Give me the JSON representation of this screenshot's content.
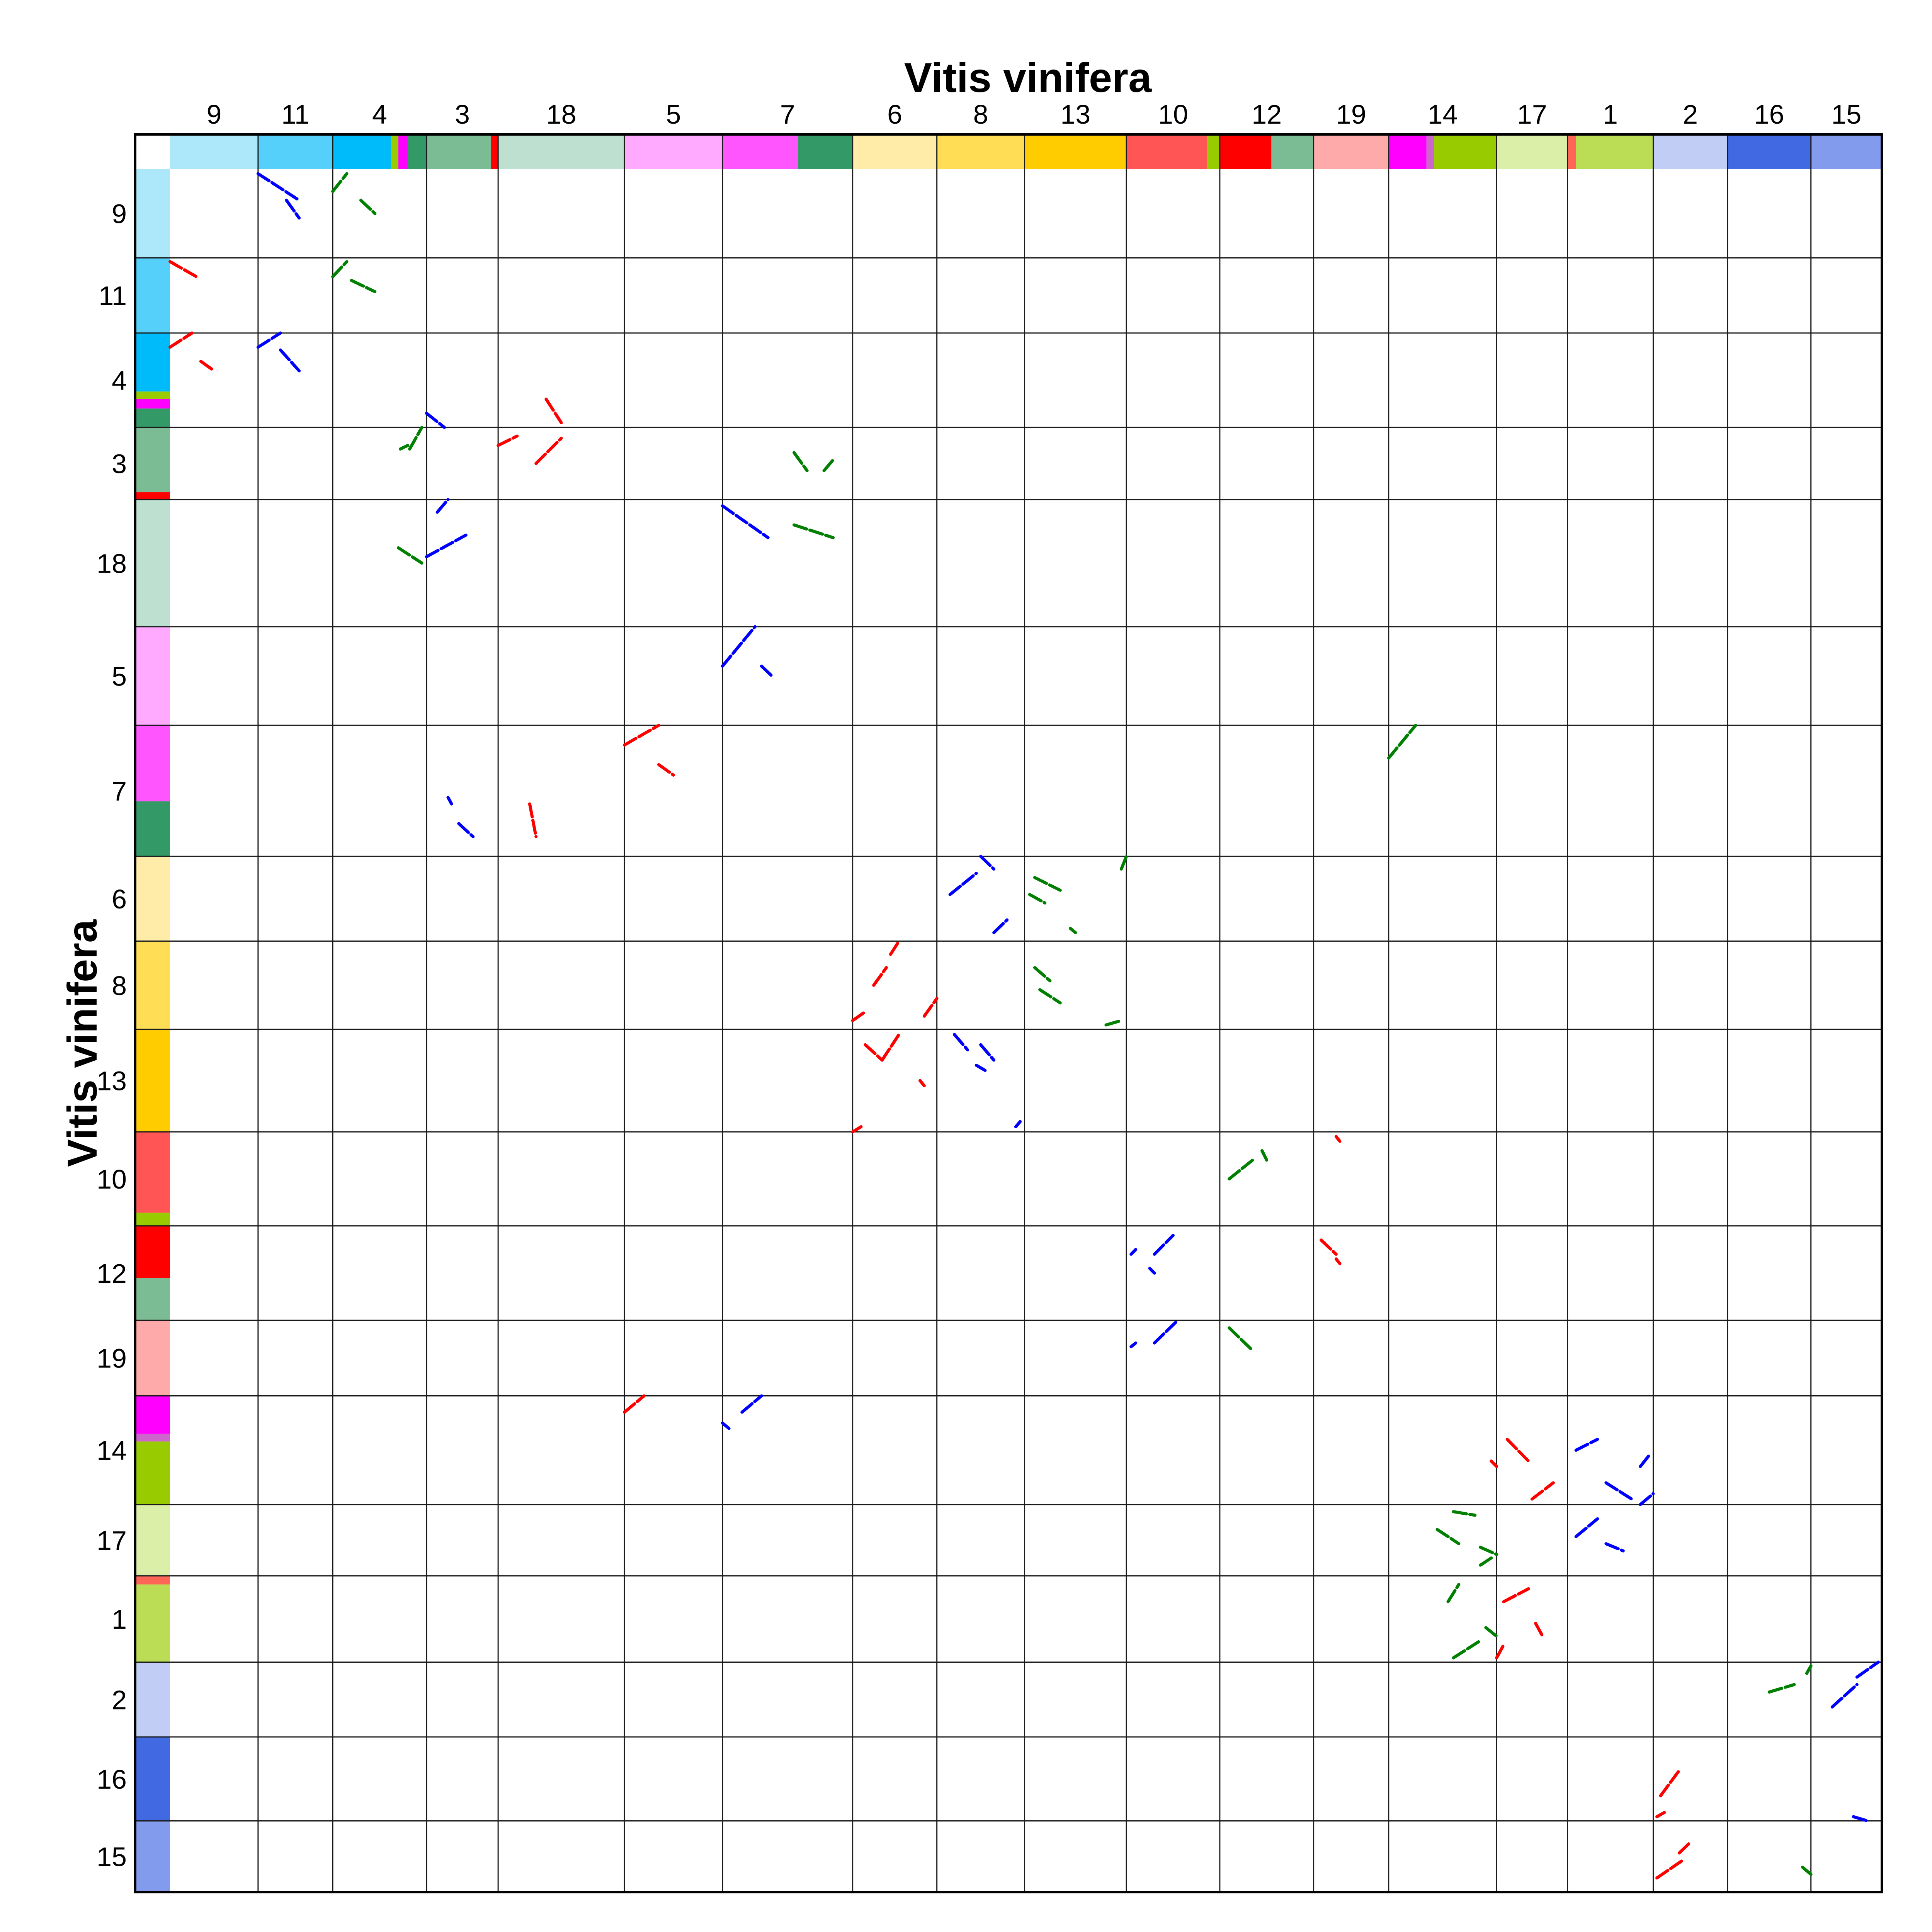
{
  "chart_data": {
    "type": "scatter",
    "title_top": "Vitis vinifera",
    "title_left": "Vitis vinifera",
    "x_chromosomes": [
      "9",
      "11",
      "4",
      "3",
      "18",
      "5",
      "7",
      "6",
      "8",
      "13",
      "10",
      "12",
      "19",
      "14",
      "17",
      "1",
      "2",
      "16",
      "15"
    ],
    "y_chromosomes": [
      "9",
      "11",
      "4",
      "3",
      "18",
      "5",
      "7",
      "6",
      "8",
      "13",
      "10",
      "12",
      "19",
      "14",
      "17",
      "1",
      "2",
      "16",
      "15"
    ],
    "chromosome_lengths": [
      23.0,
      19.5,
      24.5,
      18.7,
      33.0,
      25.6,
      34.0,
      22.0,
      22.9,
      26.6,
      24.4,
      24.5,
      19.6,
      28.2,
      18.5,
      22.4,
      19.4,
      21.8,
      18.5
    ],
    "color_segments": [
      [
        {
          "to": 1.0,
          "color": "#ade8fa"
        }
      ],
      [
        {
          "to": 1.0,
          "color": "#55d0fb"
        }
      ],
      [
        {
          "to": 0.62,
          "color": "#00bbf9"
        },
        {
          "to": 0.7,
          "color": "#99cc00"
        },
        {
          "to": 0.8,
          "color": "#ff00ff"
        },
        {
          "to": 1.0,
          "color": "#339966"
        }
      ],
      [
        {
          "to": 0.9,
          "color": "#7cbc95"
        },
        {
          "to": 1.0,
          "color": "#ff0000"
        }
      ],
      [
        {
          "to": 1.0,
          "color": "#bde0d0"
        }
      ],
      [
        {
          "to": 1.0,
          "color": "#ffaaff"
        }
      ],
      [
        {
          "to": 0.58,
          "color": "#ff55ff"
        },
        {
          "to": 1.0,
          "color": "#339966"
        }
      ],
      [
        {
          "to": 1.0,
          "color": "#ffeca8"
        }
      ],
      [
        {
          "to": 1.0,
          "color": "#ffdd55"
        }
      ],
      [
        {
          "to": 1.0,
          "color": "#ffcc00"
        }
      ],
      [
        {
          "to": 0.86,
          "color": "#ff5555"
        },
        {
          "to": 1.0,
          "color": "#99cc00"
        }
      ],
      [
        {
          "to": 0.55,
          "color": "#ff0000"
        },
        {
          "to": 1.0,
          "color": "#7cbc95"
        }
      ],
      [
        {
          "to": 1.0,
          "color": "#ffaaaa"
        }
      ],
      [
        {
          "to": 0.35,
          "color": "#ff00ff"
        },
        {
          "to": 0.42,
          "color": "#cc66cc"
        },
        {
          "to": 1.0,
          "color": "#99cc00"
        }
      ],
      [
        {
          "to": 1.0,
          "color": "#dbefa8"
        }
      ],
      [
        {
          "to": 0.1,
          "color": "#ff6655"
        },
        {
          "to": 1.0,
          "color": "#bbdd55"
        }
      ],
      [
        {
          "to": 1.0,
          "color": "#c1cdf5"
        }
      ],
      [
        {
          "to": 1.0,
          "color": "#4169e1"
        }
      ],
      [
        {
          "to": 1.0,
          "color": "#829bed"
        }
      ]
    ],
    "dot_colors": {
      "r": "#ff0000",
      "b": "#0000ff",
      "g": "#008000"
    },
    "segments": [
      {
        "xc": "11",
        "yc": "9",
        "x1": 0.0,
        "y1": 0.05,
        "x2": 0.55,
        "y2": 0.35,
        "c": "b"
      },
      {
        "xc": "11",
        "yc": "9",
        "x1": 0.38,
        "y1": 0.35,
        "x2": 0.55,
        "y2": 0.55,
        "c": "b"
      },
      {
        "xc": "4",
        "yc": "9",
        "x1": 0.0,
        "y1": 0.25,
        "x2": 0.15,
        "y2": 0.05,
        "c": "g"
      },
      {
        "xc": "4",
        "yc": "9",
        "x1": 0.3,
        "y1": 0.35,
        "x2": 0.45,
        "y2": 0.5,
        "c": "g"
      },
      {
        "xc": "9",
        "yc": "11",
        "x1": 0.0,
        "y1": 0.05,
        "x2": 0.3,
        "y2": 0.25,
        "c": "r"
      },
      {
        "xc": "4",
        "yc": "11",
        "x1": 0.0,
        "y1": 0.25,
        "x2": 0.15,
        "y2": 0.05,
        "c": "g"
      },
      {
        "xc": "4",
        "yc": "11",
        "x1": 0.2,
        "y1": 0.3,
        "x2": 0.45,
        "y2": 0.45,
        "c": "g"
      },
      {
        "xc": "9",
        "yc": "4",
        "x1": 0.0,
        "y1": 0.15,
        "x2": 0.25,
        "y2": 0.0,
        "c": "r"
      },
      {
        "xc": "9",
        "yc": "4",
        "x1": 0.35,
        "y1": 0.3,
        "x2": 0.5,
        "y2": 0.4,
        "c": "r"
      },
      {
        "xc": "11",
        "yc": "4",
        "x1": 0.0,
        "y1": 0.15,
        "x2": 0.3,
        "y2": 0.0,
        "c": "b"
      },
      {
        "xc": "11",
        "yc": "4",
        "x1": 0.3,
        "y1": 0.18,
        "x2": 0.55,
        "y2": 0.4,
        "c": "b"
      },
      {
        "xc": "3",
        "yc": "4",
        "x1": 0.0,
        "y1": 0.85,
        "x2": 0.25,
        "y2": 1.0,
        "c": "b"
      },
      {
        "xc": "18",
        "yc": "4",
        "x1": 0.38,
        "y1": 0.7,
        "x2": 0.5,
        "y2": 0.95,
        "c": "r"
      },
      {
        "xc": "4",
        "yc": "3",
        "x1": 0.82,
        "y1": 0.3,
        "x2": 0.95,
        "y2": 0.0,
        "c": "g"
      },
      {
        "xc": "4",
        "yc": "3",
        "x1": 0.72,
        "y1": 0.3,
        "x2": 0.8,
        "y2": 0.25,
        "c": "g"
      },
      {
        "xc": "18",
        "yc": "3",
        "x1": 0.0,
        "y1": 0.25,
        "x2": 0.15,
        "y2": 0.12,
        "c": "r"
      },
      {
        "xc": "18",
        "yc": "3",
        "x1": 0.3,
        "y1": 0.5,
        "x2": 0.5,
        "y2": 0.15,
        "c": "r"
      },
      {
        "xc": "7",
        "yc": "3",
        "x1": 0.55,
        "y1": 0.35,
        "x2": 0.65,
        "y2": 0.6,
        "c": "g"
      },
      {
        "xc": "7",
        "yc": "3",
        "x1": 0.78,
        "y1": 0.6,
        "x2": 0.85,
        "y2": 0.45,
        "c": "g"
      },
      {
        "xc": "4",
        "yc": "18",
        "x1": 0.7,
        "y1": 0.38,
        "x2": 0.95,
        "y2": 0.5,
        "c": "g"
      },
      {
        "xc": "3",
        "yc": "18",
        "x1": 0.0,
        "y1": 0.45,
        "x2": 0.55,
        "y2": 0.28,
        "c": "b"
      },
      {
        "xc": "3",
        "yc": "18",
        "x1": 0.15,
        "y1": 0.1,
        "x2": 0.3,
        "y2": 0.0,
        "c": "b"
      },
      {
        "xc": "7",
        "yc": "18",
        "x1": 0.55,
        "y1": 0.2,
        "x2": 0.85,
        "y2": 0.3,
        "c": "g"
      },
      {
        "xc": "7",
        "yc": "18",
        "x1": 0.0,
        "y1": 0.05,
        "x2": 0.35,
        "y2": 0.3,
        "c": "b"
      },
      {
        "xc": "7",
        "yc": "5",
        "x1": 0.0,
        "y1": 0.4,
        "x2": 0.25,
        "y2": 0.0,
        "c": "b"
      },
      {
        "xc": "7",
        "yc": "5",
        "x1": 0.3,
        "y1": 0.4,
        "x2": 0.38,
        "y2": 0.5,
        "c": "b"
      },
      {
        "xc": "5",
        "yc": "7",
        "x1": 0.0,
        "y1": 0.15,
        "x2": 0.35,
        "y2": 0.0,
        "c": "r"
      },
      {
        "xc": "5",
        "yc": "7",
        "x1": 0.35,
        "y1": 0.3,
        "x2": 0.5,
        "y2": 0.38,
        "c": "r"
      },
      {
        "xc": "3",
        "yc": "7",
        "x1": 0.3,
        "y1": 0.55,
        "x2": 0.35,
        "y2": 0.6,
        "c": "b"
      },
      {
        "xc": "3",
        "yc": "7",
        "x1": 0.45,
        "y1": 0.75,
        "x2": 0.65,
        "y2": 0.85,
        "c": "b"
      },
      {
        "xc": "18",
        "yc": "7",
        "x1": 0.25,
        "y1": 0.6,
        "x2": 0.3,
        "y2": 0.85,
        "c": "r"
      },
      {
        "xc": "14",
        "yc": "7",
        "x1": 0.0,
        "y1": 0.25,
        "x2": 0.25,
        "y2": 0.0,
        "c": "g"
      },
      {
        "xc": "8",
        "yc": "6",
        "x1": 0.15,
        "y1": 0.45,
        "x2": 0.45,
        "y2": 0.2,
        "c": "b"
      },
      {
        "xc": "8",
        "yc": "6",
        "x1": 0.5,
        "y1": 0.0,
        "x2": 0.65,
        "y2": 0.15,
        "c": "b"
      },
      {
        "xc": "8",
        "yc": "6",
        "x1": 0.65,
        "y1": 0.9,
        "x2": 0.8,
        "y2": 0.75,
        "c": "b"
      },
      {
        "xc": "13",
        "yc": "6",
        "x1": 0.1,
        "y1": 0.25,
        "x2": 0.35,
        "y2": 0.4,
        "c": "g"
      },
      {
        "xc": "13",
        "yc": "6",
        "x1": 0.05,
        "y1": 0.45,
        "x2": 0.2,
        "y2": 0.55,
        "c": "g"
      },
      {
        "xc": "13",
        "yc": "6",
        "x1": 0.45,
        "y1": 0.85,
        "x2": 0.5,
        "y2": 0.9,
        "c": "g"
      },
      {
        "xc": "13",
        "yc": "6",
        "x1": 0.95,
        "y1": 0.15,
        "x2": 1.0,
        "y2": 0.0,
        "c": "g"
      },
      {
        "xc": "6",
        "yc": "8",
        "x1": 0.0,
        "y1": 0.9,
        "x2": 0.15,
        "y2": 0.8,
        "c": "r"
      },
      {
        "xc": "6",
        "yc": "8",
        "x1": 0.25,
        "y1": 0.5,
        "x2": 0.4,
        "y2": 0.3,
        "c": "r"
      },
      {
        "xc": "6",
        "yc": "8",
        "x1": 0.45,
        "y1": 0.15,
        "x2": 0.55,
        "y2": 0.0,
        "c": "r"
      },
      {
        "xc": "6",
        "yc": "8",
        "x1": 0.85,
        "y1": 0.85,
        "x2": 1.0,
        "y2": 0.65,
        "c": "r"
      },
      {
        "xc": "13",
        "yc": "8",
        "x1": 0.1,
        "y1": 0.3,
        "x2": 0.25,
        "y2": 0.45,
        "c": "g"
      },
      {
        "xc": "13",
        "yc": "8",
        "x1": 0.15,
        "y1": 0.55,
        "x2": 0.35,
        "y2": 0.7,
        "c": "g"
      },
      {
        "xc": "13",
        "yc": "8",
        "x1": 0.8,
        "y1": 0.95,
        "x2": 0.95,
        "y2": 0.9,
        "c": "g"
      },
      {
        "xc": "6",
        "yc": "13",
        "x1": 0.15,
        "y1": 0.15,
        "x2": 0.35,
        "y2": 0.3,
        "c": "r"
      },
      {
        "xc": "6",
        "yc": "13",
        "x1": 0.35,
        "y1": 0.3,
        "x2": 0.55,
        "y2": 0.05,
        "c": "r"
      },
      {
        "xc": "6",
        "yc": "13",
        "x1": 0.8,
        "y1": 0.5,
        "x2": 0.85,
        "y2": 0.55,
        "c": "r"
      },
      {
        "xc": "8",
        "yc": "13",
        "x1": 0.2,
        "y1": 0.05,
        "x2": 0.35,
        "y2": 0.2,
        "c": "b"
      },
      {
        "xc": "8",
        "yc": "13",
        "x1": 0.5,
        "y1": 0.15,
        "x2": 0.65,
        "y2": 0.3,
        "c": "b"
      },
      {
        "xc": "8",
        "yc": "13",
        "x1": 0.45,
        "y1": 0.35,
        "x2": 0.55,
        "y2": 0.4,
        "c": "b"
      },
      {
        "xc": "6",
        "yc": "13",
        "x1": 0.0,
        "y1": 1.0,
        "x2": 0.1,
        "y2": 0.95,
        "c": "r"
      },
      {
        "xc": "8",
        "yc": "13",
        "x1": 0.9,
        "y1": 0.95,
        "x2": 0.95,
        "y2": 0.9,
        "c": "b"
      },
      {
        "xc": "12",
        "yc": "10",
        "x1": 0.1,
        "y1": 0.5,
        "x2": 0.35,
        "y2": 0.3,
        "c": "g"
      },
      {
        "xc": "12",
        "yc": "10",
        "x1": 0.45,
        "y1": 0.2,
        "x2": 0.5,
        "y2": 0.3,
        "c": "g"
      },
      {
        "xc": "19",
        "yc": "10",
        "x1": 0.3,
        "y1": 0.05,
        "x2": 0.35,
        "y2": 0.1,
        "c": "r"
      },
      {
        "xc": "10",
        "yc": "12",
        "x1": 0.05,
        "y1": 0.3,
        "x2": 0.1,
        "y2": 0.25,
        "c": "b"
      },
      {
        "xc": "10",
        "yc": "12",
        "x1": 0.3,
        "y1": 0.3,
        "x2": 0.5,
        "y2": 0.1,
        "c": "b"
      },
      {
        "xc": "10",
        "yc": "12",
        "x1": 0.25,
        "y1": 0.45,
        "x2": 0.3,
        "y2": 0.5,
        "c": "b"
      },
      {
        "xc": "19",
        "yc": "12",
        "x1": 0.1,
        "y1": 0.15,
        "x2": 0.3,
        "y2": 0.3,
        "c": "r"
      },
      {
        "xc": "19",
        "yc": "12",
        "x1": 0.3,
        "y1": 0.35,
        "x2": 0.35,
        "y2": 0.4,
        "c": "r"
      },
      {
        "xc": "10",
        "yc": "19",
        "x1": 0.05,
        "y1": 0.35,
        "x2": 0.1,
        "y2": 0.3,
        "c": "b"
      },
      {
        "xc": "10",
        "yc": "19",
        "x1": 0.3,
        "y1": 0.3,
        "x2": 0.55,
        "y2": 0.0,
        "c": "b"
      },
      {
        "xc": "12",
        "yc": "19",
        "x1": 0.1,
        "y1": 0.1,
        "x2": 0.35,
        "y2": 0.4,
        "c": "g"
      },
      {
        "xc": "5",
        "yc": "14",
        "x1": 0.0,
        "y1": 0.15,
        "x2": 0.2,
        "y2": 0.0,
        "c": "r"
      },
      {
        "xc": "7",
        "yc": "14",
        "x1": 0.0,
        "y1": 0.25,
        "x2": 0.05,
        "y2": 0.3,
        "c": "b"
      },
      {
        "xc": "7",
        "yc": "14",
        "x1": 0.15,
        "y1": 0.15,
        "x2": 0.3,
        "y2": 0.0,
        "c": "b"
      },
      {
        "xc": "17",
        "yc": "14",
        "x1": 0.15,
        "y1": 0.4,
        "x2": 0.45,
        "y2": 0.6,
        "c": "r"
      },
      {
        "xc": "14",
        "yc": "14",
        "x1": 0.95,
        "y1": 0.6,
        "x2": 1.0,
        "y2": 0.65,
        "c": "r"
      },
      {
        "xc": "17",
        "yc": "14",
        "x1": 0.5,
        "y1": 0.95,
        "x2": 0.8,
        "y2": 0.8,
        "c": "r"
      },
      {
        "xc": "1",
        "yc": "14",
        "x1": 0.1,
        "y1": 0.5,
        "x2": 0.35,
        "y2": 0.4,
        "c": "b"
      },
      {
        "xc": "1",
        "yc": "14",
        "x1": 0.45,
        "y1": 0.8,
        "x2": 0.75,
        "y2": 0.95,
        "c": "b"
      },
      {
        "xc": "1",
        "yc": "14",
        "x1": 0.85,
        "y1": 0.65,
        "x2": 0.95,
        "y2": 0.55,
        "c": "b"
      },
      {
        "xc": "1",
        "yc": "14",
        "x1": 0.85,
        "y1": 1.0,
        "x2": 1.0,
        "y2": 0.9,
        "c": "b"
      },
      {
        "xc": "14",
        "yc": "17",
        "x1": 0.6,
        "y1": 0.1,
        "x2": 0.8,
        "y2": 0.15,
        "c": "g"
      },
      {
        "xc": "14",
        "yc": "17",
        "x1": 0.45,
        "y1": 0.35,
        "x2": 0.65,
        "y2": 0.55,
        "c": "g"
      },
      {
        "xc": "14",
        "yc": "17",
        "x1": 0.85,
        "y1": 0.6,
        "x2": 1.0,
        "y2": 0.7,
        "c": "g"
      },
      {
        "xc": "14",
        "yc": "17",
        "x1": 0.85,
        "y1": 0.85,
        "x2": 0.95,
        "y2": 0.75,
        "c": "g"
      },
      {
        "xc": "1",
        "yc": "17",
        "x1": 0.1,
        "y1": 0.45,
        "x2": 0.35,
        "y2": 0.2,
        "c": "b"
      },
      {
        "xc": "1",
        "yc": "17",
        "x1": 0.45,
        "y1": 0.55,
        "x2": 0.65,
        "y2": 0.65,
        "c": "b"
      },
      {
        "xc": "14",
        "yc": "1",
        "x1": 0.55,
        "y1": 0.3,
        "x2": 0.65,
        "y2": 0.1,
        "c": "g"
      },
      {
        "xc": "14",
        "yc": "1",
        "x1": 0.6,
        "y1": 0.95,
        "x2": 0.85,
        "y2": 0.75,
        "c": "g"
      },
      {
        "xc": "14",
        "yc": "1",
        "x1": 0.9,
        "y1": 0.6,
        "x2": 1.0,
        "y2": 0.7,
        "c": "g"
      },
      {
        "xc": "17",
        "yc": "1",
        "x1": 0.1,
        "y1": 0.3,
        "x2": 0.45,
        "y2": 0.15,
        "c": "r"
      },
      {
        "xc": "17",
        "yc": "1",
        "x1": 0.55,
        "y1": 0.55,
        "x2": 0.65,
        "y2": 0.7,
        "c": "r"
      },
      {
        "xc": "17",
        "yc": "1",
        "x1": 0.0,
        "y1": 0.95,
        "x2": 0.1,
        "y2": 0.8,
        "c": "r"
      },
      {
        "xc": "16",
        "yc": "2",
        "x1": 0.5,
        "y1": 0.4,
        "x2": 0.8,
        "y2": 0.3,
        "c": "g"
      },
      {
        "xc": "16",
        "yc": "2",
        "x1": 0.95,
        "y1": 0.15,
        "x2": 1.0,
        "y2": 0.05,
        "c": "g"
      },
      {
        "xc": "15",
        "yc": "2",
        "x1": 0.3,
        "y1": 0.6,
        "x2": 0.65,
        "y2": 0.3,
        "c": "b"
      },
      {
        "xc": "15",
        "yc": "2",
        "x1": 0.65,
        "y1": 0.2,
        "x2": 0.95,
        "y2": 0.0,
        "c": "b"
      },
      {
        "xc": "2",
        "yc": "16",
        "x1": 0.1,
        "y1": 0.7,
        "x2": 0.35,
        "y2": 0.4,
        "c": "r"
      },
      {
        "xc": "2",
        "yc": "16",
        "x1": 0.05,
        "y1": 0.95,
        "x2": 0.15,
        "y2": 0.9,
        "c": "r"
      },
      {
        "xc": "15",
        "yc": "16",
        "x1": 0.6,
        "y1": 0.95,
        "x2": 0.8,
        "y2": 1.0,
        "c": "b"
      },
      {
        "xc": "2",
        "yc": "15",
        "x1": 0.05,
        "y1": 0.8,
        "x2": 0.4,
        "y2": 0.55,
        "c": "r"
      },
      {
        "xc": "2",
        "yc": "15",
        "x1": 0.35,
        "y1": 0.45,
        "x2": 0.5,
        "y2": 0.3,
        "c": "r"
      },
      {
        "xc": "16",
        "yc": "15",
        "x1": 0.9,
        "y1": 0.65,
        "x2": 1.0,
        "y2": 0.75,
        "c": "g"
      }
    ]
  }
}
